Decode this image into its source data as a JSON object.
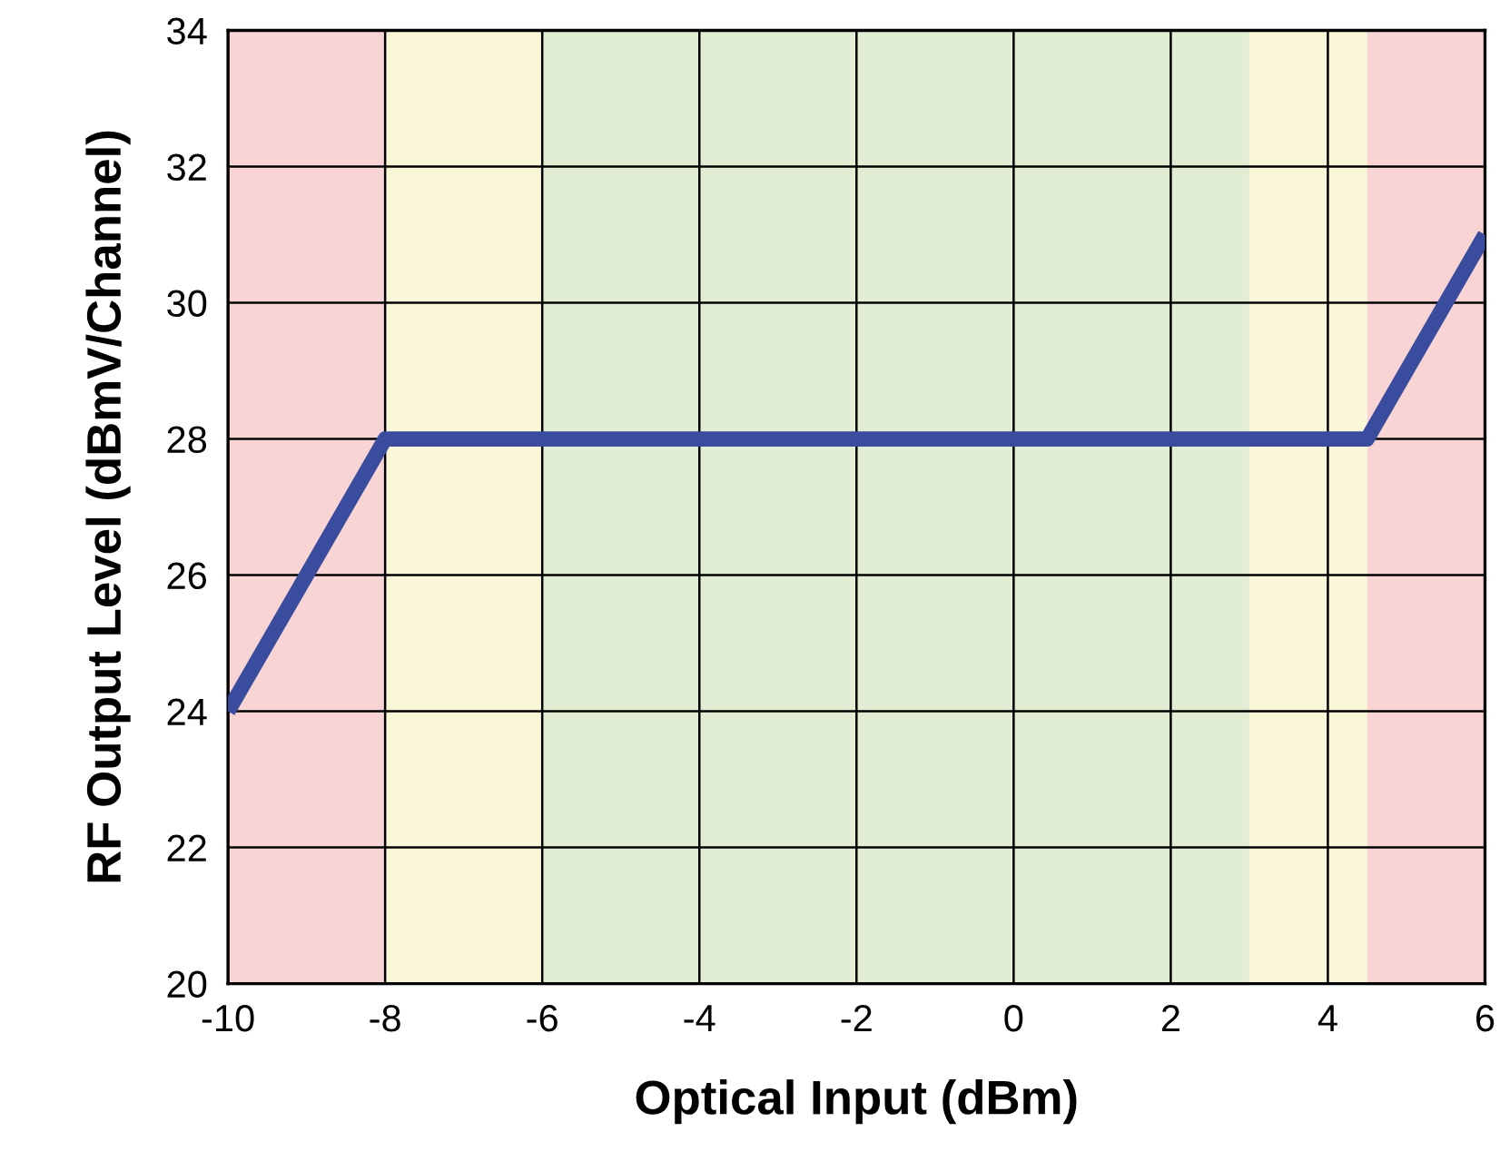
{
  "chart_data": {
    "type": "line",
    "xlabel": "Optical Input (dBm)",
    "ylabel": "RF Output Level (dBmV/Channel)",
    "x": [
      -10,
      -8,
      4.5,
      6
    ],
    "series": [
      {
        "color": "#3a4c9e",
        "values": [
          24,
          28,
          28,
          31
        ]
      }
    ],
    "xlim": [
      -10,
      6
    ],
    "xticks": [
      -10,
      -8,
      -6,
      -4,
      -2,
      0,
      2,
      4,
      6
    ],
    "ylim": [
      20,
      34
    ],
    "yticks": [
      20,
      22,
      24,
      26,
      28,
      30,
      32,
      34
    ],
    "grid": true,
    "marker": "none",
    "line_style": "solid",
    "bands": [
      {
        "axis": "x",
        "from": -10,
        "to": -8,
        "color": "#f8d4d4"
      },
      {
        "axis": "x",
        "from": -8,
        "to": -6,
        "color": "#faf6d8"
      },
      {
        "axis": "x",
        "from": -6,
        "to": 3,
        "color": "#e2eed4"
      },
      {
        "axis": "x",
        "from": 3,
        "to": 4.5,
        "color": "#faf6d8"
      },
      {
        "axis": "x",
        "from": 4.5,
        "to": 6,
        "color": "#f8d4d4"
      }
    ]
  }
}
